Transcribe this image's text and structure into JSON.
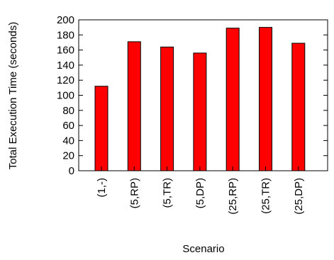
{
  "chart_data": {
    "type": "bar",
    "title": "",
    "xlabel": "Scenario",
    "ylabel": "Total Execution Time (seconds)",
    "categories": [
      "(1,-)",
      "(5,RP)",
      "(5,TR)",
      "(5,DP)",
      "(25,RP)",
      "(25,TR)",
      "(25,DP)"
    ],
    "values": [
      112,
      171,
      164,
      156,
      189,
      190,
      169
    ],
    "ylim": [
      0,
      200
    ],
    "yticks": [
      0,
      20,
      40,
      60,
      80,
      100,
      120,
      140,
      160,
      180,
      200
    ],
    "grid": false,
    "legend": "none",
    "colors": {
      "bar_fill": "#ff0000",
      "bar_stroke": "#000000",
      "axis": "#000000"
    }
  }
}
